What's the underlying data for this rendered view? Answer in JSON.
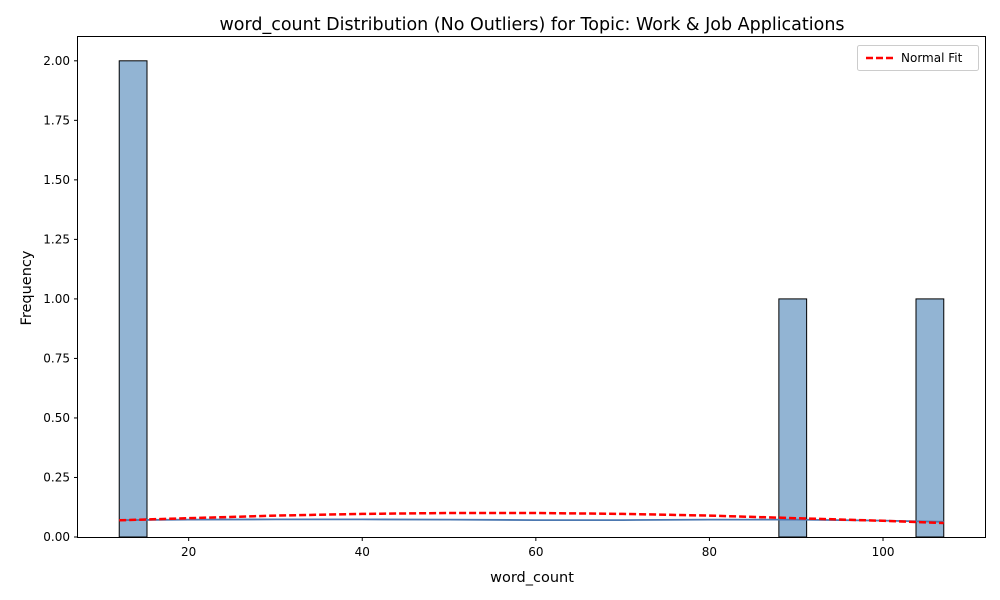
{
  "chart_data": {
    "type": "bar",
    "title": "word_count Distribution (No Outliers) for Topic: Work & Job Applications",
    "xlabel": "word_count",
    "ylabel": "Frequency",
    "xlim": [
      7.25,
      111.75
    ],
    "ylim": [
      0,
      2.1
    ],
    "xticks": [
      20,
      40,
      60,
      80,
      100
    ],
    "yticks": [
      0.0,
      0.25,
      0.5,
      0.75,
      1.0,
      1.25,
      1.5,
      1.75,
      2.0
    ],
    "xtick_labels": [
      "20",
      "40",
      "60",
      "80",
      "100"
    ],
    "ytick_labels": [
      "0.00",
      "0.25",
      "0.50",
      "0.75",
      "1.00",
      "1.25",
      "1.50",
      "1.75",
      "2.00"
    ],
    "bins": [
      {
        "start": 12.0,
        "end": 15.2,
        "count": 2
      },
      {
        "start": 88.0,
        "end": 91.2,
        "count": 1
      },
      {
        "start": 103.8,
        "end": 107.0,
        "count": 1
      }
    ],
    "bar_color": "#92b4d3",
    "bar_edge_color": "#000000",
    "grid": false,
    "legend_position": "top-right",
    "series": [
      {
        "name": "Normal Fit",
        "style": "dashed",
        "color": "#ff0000",
        "x": [
          12,
          20,
          30,
          40,
          50,
          60,
          70,
          80,
          90,
          100,
          107
        ],
        "y": [
          0.07,
          0.079,
          0.09,
          0.097,
          0.101,
          0.101,
          0.097,
          0.09,
          0.079,
          0.068,
          0.059
        ]
      },
      {
        "style": "solid",
        "color": "#4c78b0",
        "x": [
          12,
          20,
          30,
          40,
          50,
          60,
          70,
          80,
          90,
          100,
          107
        ],
        "y": [
          0.071,
          0.073,
          0.074,
          0.074,
          0.073,
          0.071,
          0.071,
          0.073,
          0.073,
          0.069,
          0.064
        ]
      }
    ]
  }
}
